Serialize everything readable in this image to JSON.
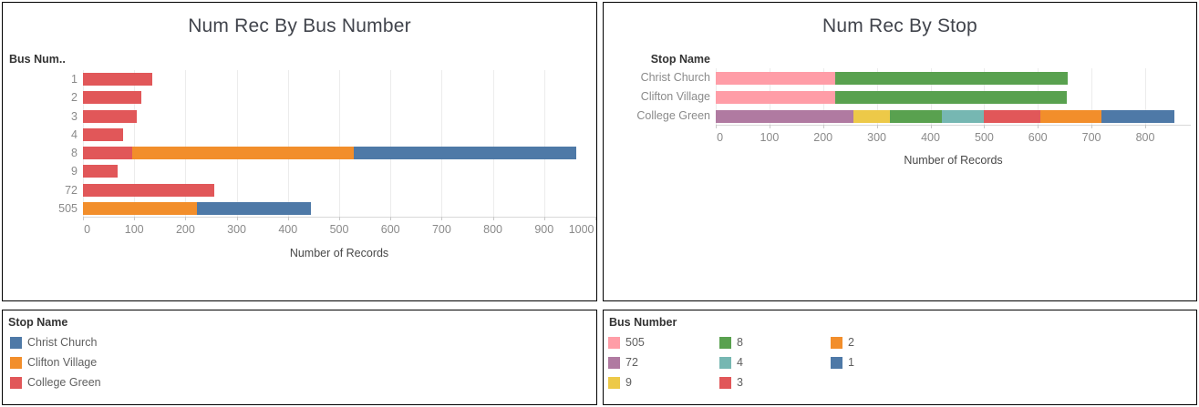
{
  "app": {
    "background": "#ffffff",
    "panel_border_color": "#000000",
    "gridline_color": "#ececec",
    "axis_line_color": "#d9d9d9"
  },
  "chart_data": [
    {
      "type": "bar",
      "orientation": "horizontal-stacked",
      "title": "Num Rec By Bus Number",
      "row_header": "Bus Num..",
      "xlabel": "Number of Records",
      "categories": [
        "1",
        "2",
        "3",
        "4",
        "8",
        "9",
        "72",
        "505"
      ],
      "series": [
        {
          "name": "College Green",
          "color": "#E15759",
          "values": [
            136,
            114,
            105,
            79,
            96,
            68,
            257,
            0
          ]
        },
        {
          "name": "Clifton Village",
          "color": "#F28E2B",
          "values": [
            0,
            0,
            0,
            0,
            432,
            0,
            0,
            222
          ]
        },
        {
          "name": "Christ Church",
          "color": "#4E79A7",
          "values": [
            0,
            0,
            0,
            0,
            434,
            0,
            0,
            222
          ]
        }
      ],
      "xlim": [
        0,
        1000
      ],
      "xticks": [
        0,
        100,
        200,
        300,
        400,
        500,
        600,
        700,
        800,
        900,
        1000
      ],
      "grid": true,
      "legend_position": "separate-panel-bottom-left"
    },
    {
      "type": "bar",
      "orientation": "horizontal-stacked",
      "title": "Num Rec By Stop",
      "row_header": "Stop Name",
      "xlabel": "Number of Records",
      "categories": [
        "Christ Church",
        "Clifton Village",
        "College Green"
      ],
      "series": [
        {
          "name": "505",
          "color": "#FF9DA7",
          "values": [
            222,
            222,
            0
          ]
        },
        {
          "name": "72",
          "color": "#B07AA1",
          "values": [
            0,
            0,
            257
          ]
        },
        {
          "name": "9",
          "color": "#EDC948",
          "values": [
            0,
            0,
            68
          ]
        },
        {
          "name": "8",
          "color": "#59A14F",
          "values": [
            434,
            432,
            96
          ]
        },
        {
          "name": "4",
          "color": "#76B7B2",
          "values": [
            0,
            0,
            79
          ]
        },
        {
          "name": "3",
          "color": "#E15759",
          "values": [
            0,
            0,
            105
          ]
        },
        {
          "name": "2",
          "color": "#F28E2B",
          "values": [
            0,
            0,
            114
          ]
        },
        {
          "name": "1",
          "color": "#4E79A7",
          "values": [
            0,
            0,
            136
          ]
        }
      ],
      "xlim": [
        0,
        885
      ],
      "xticks": [
        0,
        100,
        200,
        300,
        400,
        500,
        600,
        700,
        800
      ],
      "grid": true,
      "legend_position": "separate-panel-bottom-right"
    }
  ],
  "legends": {
    "stop_name": {
      "title": "Stop Name",
      "items": [
        {
          "label": "Christ Church",
          "color": "#4E79A7"
        },
        {
          "label": "Clifton Village",
          "color": "#F28E2B"
        },
        {
          "label": "College Green",
          "color": "#E15759"
        }
      ]
    },
    "bus_number": {
      "title": "Bus Number",
      "rows_per_column": 3,
      "items": [
        {
          "label": "505",
          "color": "#FF9DA7"
        },
        {
          "label": "72",
          "color": "#B07AA1"
        },
        {
          "label": "9",
          "color": "#EDC948"
        },
        {
          "label": "8",
          "color": "#59A14F"
        },
        {
          "label": "4",
          "color": "#76B7B2"
        },
        {
          "label": "3",
          "color": "#E15759"
        },
        {
          "label": "2",
          "color": "#F28E2B"
        },
        {
          "label": "1",
          "color": "#4E79A7"
        }
      ]
    }
  }
}
